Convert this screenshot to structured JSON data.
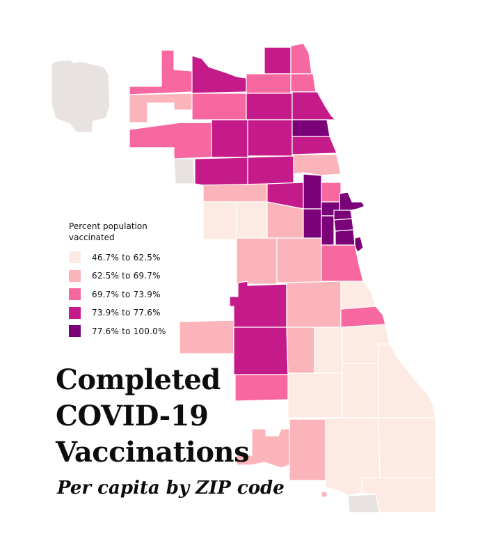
{
  "legend": {
    "title": "Percent population\nvaccinated",
    "bins": [
      {
        "label": "46.7% to 62.5%",
        "color": "#fdebe3"
      },
      {
        "label": "62.5% to 69.7%",
        "color": "#fbb4b9"
      },
      {
        "label": "69.7% to 73.9%",
        "color": "#f768a1"
      },
      {
        "label": "73.9% to 77.6%",
        "color": "#c51b8a"
      },
      {
        "label": "77.6% to 100.0%",
        "color": "#7a0177"
      }
    ],
    "no_data_color": "#e8e3e1"
  },
  "title": {
    "line1": "Completed",
    "line2": "COVID-19",
    "line3": "Vaccinations"
  },
  "subtitle": "Per capita by ZIP code"
}
